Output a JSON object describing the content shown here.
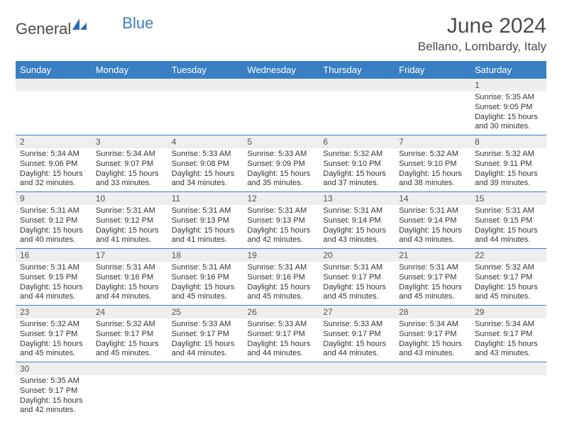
{
  "brand": {
    "part1": "General",
    "part2": "Blue"
  },
  "title": "June 2024",
  "location": "Bellano, Lombardy, Italy",
  "colors": {
    "header_bg": "#3a7fc4",
    "header_fg": "#ffffff",
    "daynum_bg": "#eeeeee",
    "border": "#3a7fc4",
    "text": "#333333",
    "title": "#4a4a4a"
  },
  "weekdays": [
    "Sunday",
    "Monday",
    "Tuesday",
    "Wednesday",
    "Thursday",
    "Friday",
    "Saturday"
  ],
  "weeks": [
    [
      null,
      null,
      null,
      null,
      null,
      null,
      {
        "d": "1",
        "sr": "5:35 AM",
        "ss": "9:05 PM",
        "dl": "15 hours and 30 minutes."
      }
    ],
    [
      {
        "d": "2",
        "sr": "5:34 AM",
        "ss": "9:06 PM",
        "dl": "15 hours and 32 minutes."
      },
      {
        "d": "3",
        "sr": "5:34 AM",
        "ss": "9:07 PM",
        "dl": "15 hours and 33 minutes."
      },
      {
        "d": "4",
        "sr": "5:33 AM",
        "ss": "9:08 PM",
        "dl": "15 hours and 34 minutes."
      },
      {
        "d": "5",
        "sr": "5:33 AM",
        "ss": "9:09 PM",
        "dl": "15 hours and 35 minutes."
      },
      {
        "d": "6",
        "sr": "5:32 AM",
        "ss": "9:10 PM",
        "dl": "15 hours and 37 minutes."
      },
      {
        "d": "7",
        "sr": "5:32 AM",
        "ss": "9:10 PM",
        "dl": "15 hours and 38 minutes."
      },
      {
        "d": "8",
        "sr": "5:32 AM",
        "ss": "9:11 PM",
        "dl": "15 hours and 39 minutes."
      }
    ],
    [
      {
        "d": "9",
        "sr": "5:31 AM",
        "ss": "9:12 PM",
        "dl": "15 hours and 40 minutes."
      },
      {
        "d": "10",
        "sr": "5:31 AM",
        "ss": "9:12 PM",
        "dl": "15 hours and 41 minutes."
      },
      {
        "d": "11",
        "sr": "5:31 AM",
        "ss": "9:13 PM",
        "dl": "15 hours and 41 minutes."
      },
      {
        "d": "12",
        "sr": "5:31 AM",
        "ss": "9:13 PM",
        "dl": "15 hours and 42 minutes."
      },
      {
        "d": "13",
        "sr": "5:31 AM",
        "ss": "9:14 PM",
        "dl": "15 hours and 43 minutes."
      },
      {
        "d": "14",
        "sr": "5:31 AM",
        "ss": "9:14 PM",
        "dl": "15 hours and 43 minutes."
      },
      {
        "d": "15",
        "sr": "5:31 AM",
        "ss": "9:15 PM",
        "dl": "15 hours and 44 minutes."
      }
    ],
    [
      {
        "d": "16",
        "sr": "5:31 AM",
        "ss": "9:15 PM",
        "dl": "15 hours and 44 minutes."
      },
      {
        "d": "17",
        "sr": "5:31 AM",
        "ss": "9:16 PM",
        "dl": "15 hours and 44 minutes."
      },
      {
        "d": "18",
        "sr": "5:31 AM",
        "ss": "9:16 PM",
        "dl": "15 hours and 45 minutes."
      },
      {
        "d": "19",
        "sr": "5:31 AM",
        "ss": "9:16 PM",
        "dl": "15 hours and 45 minutes."
      },
      {
        "d": "20",
        "sr": "5:31 AM",
        "ss": "9:17 PM",
        "dl": "15 hours and 45 minutes."
      },
      {
        "d": "21",
        "sr": "5:31 AM",
        "ss": "9:17 PM",
        "dl": "15 hours and 45 minutes."
      },
      {
        "d": "22",
        "sr": "5:32 AM",
        "ss": "9:17 PM",
        "dl": "15 hours and 45 minutes."
      }
    ],
    [
      {
        "d": "23",
        "sr": "5:32 AM",
        "ss": "9:17 PM",
        "dl": "15 hours and 45 minutes."
      },
      {
        "d": "24",
        "sr": "5:32 AM",
        "ss": "9:17 PM",
        "dl": "15 hours and 45 minutes."
      },
      {
        "d": "25",
        "sr": "5:33 AM",
        "ss": "9:17 PM",
        "dl": "15 hours and 44 minutes."
      },
      {
        "d": "26",
        "sr": "5:33 AM",
        "ss": "9:17 PM",
        "dl": "15 hours and 44 minutes."
      },
      {
        "d": "27",
        "sr": "5:33 AM",
        "ss": "9:17 PM",
        "dl": "15 hours and 44 minutes."
      },
      {
        "d": "28",
        "sr": "5:34 AM",
        "ss": "9:17 PM",
        "dl": "15 hours and 43 minutes."
      },
      {
        "d": "29",
        "sr": "5:34 AM",
        "ss": "9:17 PM",
        "dl": "15 hours and 43 minutes."
      }
    ],
    [
      {
        "d": "30",
        "sr": "5:35 AM",
        "ss": "9:17 PM",
        "dl": "15 hours and 42 minutes."
      },
      null,
      null,
      null,
      null,
      null,
      null
    ]
  ],
  "labels": {
    "sunrise": "Sunrise:",
    "sunset": "Sunset:",
    "daylight": "Daylight:"
  }
}
